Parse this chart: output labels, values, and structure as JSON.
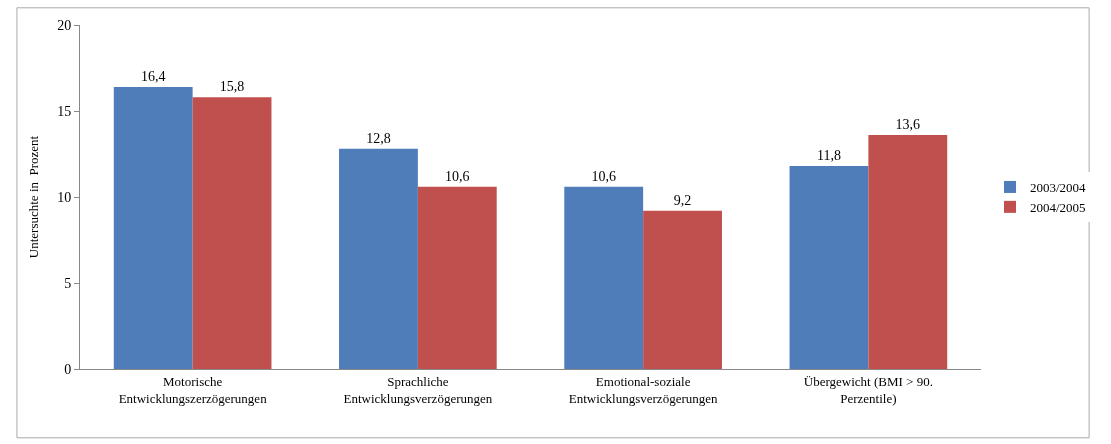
{
  "chart_data": {
    "type": "bar",
    "ylabel": "Untersuchte in  Prozent",
    "categories": [
      "Motorische Entwicklungszerzögerungen",
      "Sprachliche Entwicklungsverzögerungen",
      "Emotional-soziale Entwicklungsverzögerungen",
      "Übergewicht (BMI > 90. Perzentile)"
    ],
    "series": [
      {
        "name": "2003/2004",
        "color": "#4f7dba",
        "values": [
          16.4,
          12.8,
          10.6,
          11.8
        ],
        "value_labels": [
          "16,4",
          "12,8",
          "10,6",
          "11,8"
        ]
      },
      {
        "name": "2004/2005",
        "color": "#c0504d",
        "values": [
          15.8,
          10.6,
          9.2,
          13.6
        ],
        "value_labels": [
          "15,8",
          "10,6",
          "9,2",
          "13,6"
        ]
      }
    ],
    "ylim": [
      0,
      20
    ],
    "yticks": [
      0,
      5,
      10,
      15,
      20
    ],
    "grid": false,
    "legend": "right"
  }
}
